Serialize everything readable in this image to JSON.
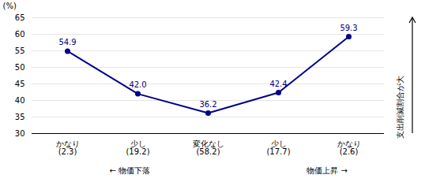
{
  "chart_data": {
    "type": "line",
    "categories": [
      "かなり\n(2.3)",
      "少し\n(19.2)",
      "変化なし\n(58.2)",
      "少し\n(17.7)",
      "かなり\n(2.6)"
    ],
    "values": [
      54.9,
      42.0,
      36.2,
      42.4,
      59.3
    ],
    "value_labels": [
      "54.9",
      "42.0",
      "36.2",
      "42.4",
      "59.3"
    ],
    "data_labels": true,
    "color": "#00008B",
    "marker": "circle",
    "ylabel": "(%)",
    "ylim": [
      30,
      65
    ],
    "yticks": [
      30,
      35,
      40,
      45,
      50,
      55,
      60,
      65
    ],
    "grid": true,
    "annotations": [
      "支出削減割合が大",
      "← 物価下落",
      "物価上昇 →"
    ]
  }
}
